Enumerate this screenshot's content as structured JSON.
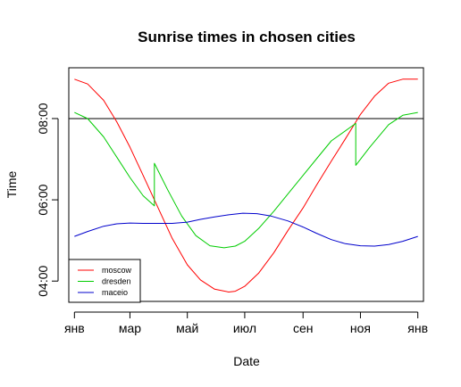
{
  "chart_data": {
    "type": "line",
    "title": "Sunrise times in chosen cities",
    "xlabel": "Date",
    "ylabel": "Time",
    "x_ticks": [
      {
        "day": 1,
        "label": "янв"
      },
      {
        "day": 60,
        "label": "мар"
      },
      {
        "day": 121,
        "label": "май"
      },
      {
        "day": 182,
        "label": "июл"
      },
      {
        "day": 244,
        "label": "сен"
      },
      {
        "day": 305,
        "label": "ноя"
      },
      {
        "day": 366,
        "label": "янв"
      }
    ],
    "y_ticks": [
      {
        "value": 4,
        "label": "04:00"
      },
      {
        "value": 6,
        "label": "06:00"
      },
      {
        "value": 8,
        "label": "08:00"
      }
    ],
    "xlim": [
      -5,
      372
    ],
    "ylim": [
      3.5,
      9.25
    ],
    "hline": 8,
    "legend_position": "bottom-left",
    "series": [
      {
        "name": "moscow",
        "color": "#ff0000",
        "points": [
          [
            1,
            8.97
          ],
          [
            15,
            8.85
          ],
          [
            32,
            8.45
          ],
          [
            46,
            7.92
          ],
          [
            60,
            7.3
          ],
          [
            74,
            6.6
          ],
          [
            90,
            5.8
          ],
          [
            105,
            5.05
          ],
          [
            121,
            4.4
          ],
          [
            135,
            4.03
          ],
          [
            150,
            3.8
          ],
          [
            165,
            3.73
          ],
          [
            172,
            3.75
          ],
          [
            182,
            3.87
          ],
          [
            197,
            4.2
          ],
          [
            213,
            4.7
          ],
          [
            228,
            5.25
          ],
          [
            244,
            5.8
          ],
          [
            258,
            6.35
          ],
          [
            274,
            6.95
          ],
          [
            289,
            7.5
          ],
          [
            305,
            8.1
          ],
          [
            320,
            8.55
          ],
          [
            335,
            8.87
          ],
          [
            350,
            8.97
          ],
          [
            366,
            8.97
          ]
        ]
      },
      {
        "name": "dresden",
        "color": "#00cc00",
        "points": [
          [
            1,
            8.15
          ],
          [
            15,
            8.0
          ],
          [
            32,
            7.55
          ],
          [
            46,
            7.05
          ],
          [
            60,
            6.55
          ],
          [
            74,
            6.1
          ],
          [
            86,
            5.85
          ],
          [
            86,
            6.9
          ],
          [
            100,
            6.25
          ],
          [
            115,
            5.6
          ],
          [
            130,
            5.12
          ],
          [
            145,
            4.87
          ],
          [
            160,
            4.82
          ],
          [
            172,
            4.86
          ],
          [
            182,
            4.98
          ],
          [
            197,
            5.3
          ],
          [
            213,
            5.72
          ],
          [
            228,
            6.15
          ],
          [
            244,
            6.6
          ],
          [
            258,
            7.0
          ],
          [
            274,
            7.45
          ],
          [
            300,
            7.88
          ],
          [
            300,
            6.85
          ],
          [
            315,
            7.3
          ],
          [
            335,
            7.85
          ],
          [
            350,
            8.08
          ],
          [
            366,
            8.15
          ]
        ]
      },
      {
        "name": "maceio",
        "color": "#0000cc",
        "points": [
          [
            1,
            5.1
          ],
          [
            15,
            5.22
          ],
          [
            32,
            5.35
          ],
          [
            46,
            5.41
          ],
          [
            60,
            5.43
          ],
          [
            74,
            5.42
          ],
          [
            90,
            5.42
          ],
          [
            105,
            5.42
          ],
          [
            121,
            5.45
          ],
          [
            135,
            5.52
          ],
          [
            150,
            5.58
          ],
          [
            165,
            5.63
          ],
          [
            180,
            5.67
          ],
          [
            195,
            5.66
          ],
          [
            210,
            5.6
          ],
          [
            228,
            5.48
          ],
          [
            244,
            5.33
          ],
          [
            258,
            5.18
          ],
          [
            274,
            5.02
          ],
          [
            289,
            4.92
          ],
          [
            305,
            4.87
          ],
          [
            320,
            4.86
          ],
          [
            335,
            4.9
          ],
          [
            350,
            4.98
          ],
          [
            366,
            5.1
          ]
        ]
      }
    ]
  }
}
